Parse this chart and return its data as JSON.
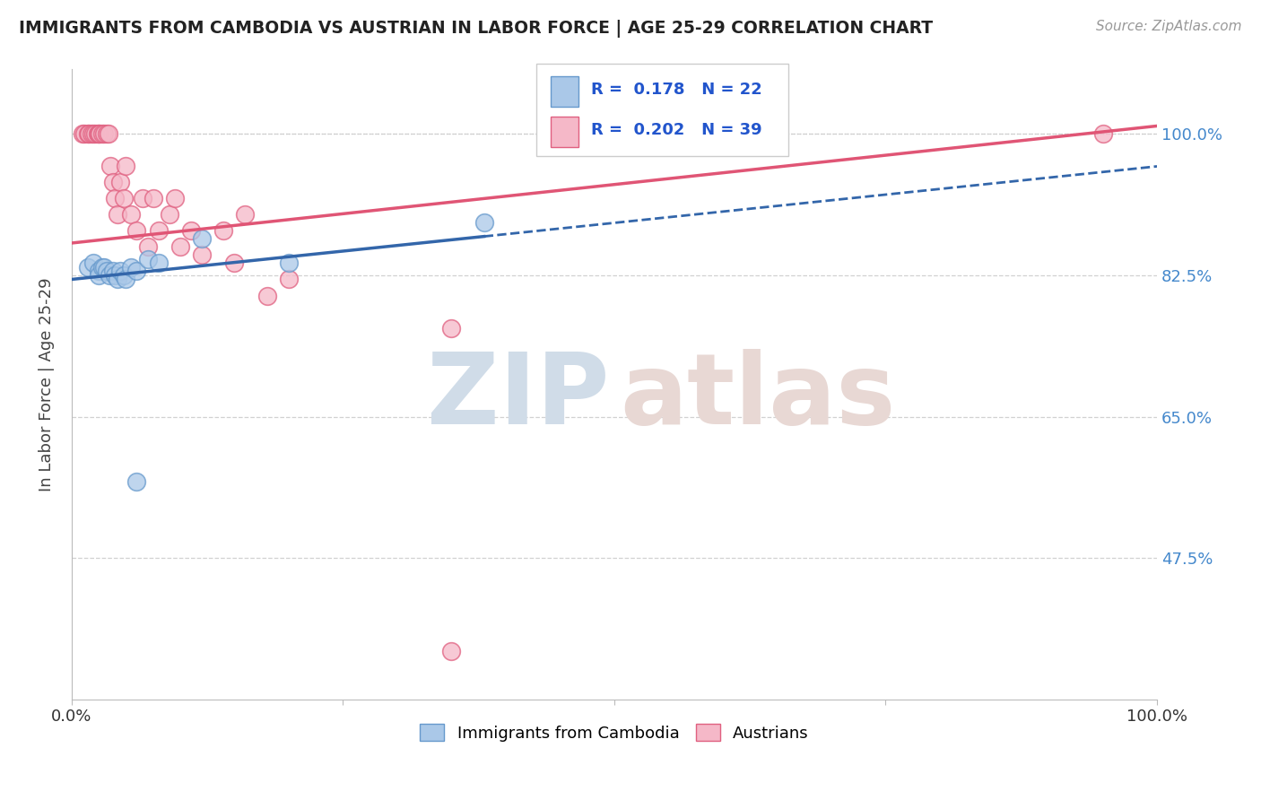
{
  "title": "IMMIGRANTS FROM CAMBODIA VS AUSTRIAN IN LABOR FORCE | AGE 25-29 CORRELATION CHART",
  "source": "Source: ZipAtlas.com",
  "ylabel": "In Labor Force | Age 25-29",
  "xlim": [
    0.0,
    1.0
  ],
  "ylim": [
    0.3,
    1.08
  ],
  "yticks": [
    0.475,
    0.65,
    0.825,
    1.0
  ],
  "ytick_labels": [
    "47.5%",
    "65.0%",
    "82.5%",
    "100.0%"
  ],
  "cambodia_x": [
    0.015,
    0.02,
    0.025,
    0.025,
    0.028,
    0.03,
    0.032,
    0.035,
    0.038,
    0.04,
    0.042,
    0.045,
    0.048,
    0.05,
    0.055,
    0.06,
    0.07,
    0.08,
    0.12,
    0.2,
    0.38,
    0.06
  ],
  "cambodia_y": [
    0.835,
    0.84,
    0.83,
    0.825,
    0.835,
    0.835,
    0.83,
    0.825,
    0.83,
    0.825,
    0.82,
    0.83,
    0.825,
    0.82,
    0.835,
    0.83,
    0.845,
    0.84,
    0.87,
    0.84,
    0.89,
    0.57
  ],
  "austria_x": [
    0.01,
    0.012,
    0.015,
    0.016,
    0.018,
    0.02,
    0.022,
    0.024,
    0.025,
    0.026,
    0.028,
    0.03,
    0.032,
    0.034,
    0.036,
    0.038,
    0.04,
    0.042,
    0.045,
    0.048,
    0.05,
    0.055,
    0.06,
    0.065,
    0.07,
    0.075,
    0.08,
    0.09,
    0.095,
    0.1,
    0.11,
    0.12,
    0.14,
    0.15,
    0.16,
    0.18,
    0.2,
    0.35,
    0.95
  ],
  "austria_y": [
    1.0,
    1.0,
    1.0,
    1.0,
    1.0,
    1.0,
    1.0,
    1.0,
    1.0,
    1.0,
    1.0,
    1.0,
    1.0,
    1.0,
    0.96,
    0.94,
    0.92,
    0.9,
    0.94,
    0.92,
    0.96,
    0.9,
    0.88,
    0.92,
    0.86,
    0.92,
    0.88,
    0.9,
    0.92,
    0.86,
    0.88,
    0.85,
    0.88,
    0.84,
    0.9,
    0.8,
    0.82,
    0.76,
    1.0
  ],
  "austria_outlier_x": [
    0.35
  ],
  "austria_outlier_y": [
    0.36
  ],
  "R_cambodia": 0.178,
  "N_cambodia": 22,
  "R_austria": 0.202,
  "N_austria": 39,
  "cambodia_color": "#aac8e8",
  "austria_color": "#f5b8c8",
  "cambodia_edge_color": "#6699cc",
  "austria_edge_color": "#e06080",
  "cambodia_line_color": "#3366aa",
  "austria_line_color": "#e05575",
  "legend_label_cambodia": "Immigrants from Cambodia",
  "legend_label_austria": "Austrians",
  "background_color": "#ffffff",
  "grid_color": "#cccccc",
  "title_color": "#222222",
  "right_tick_color": "#4488cc",
  "blue_line_y0": 0.82,
  "blue_line_y1": 0.96,
  "pink_line_y0": 0.865,
  "pink_line_y1": 1.01
}
